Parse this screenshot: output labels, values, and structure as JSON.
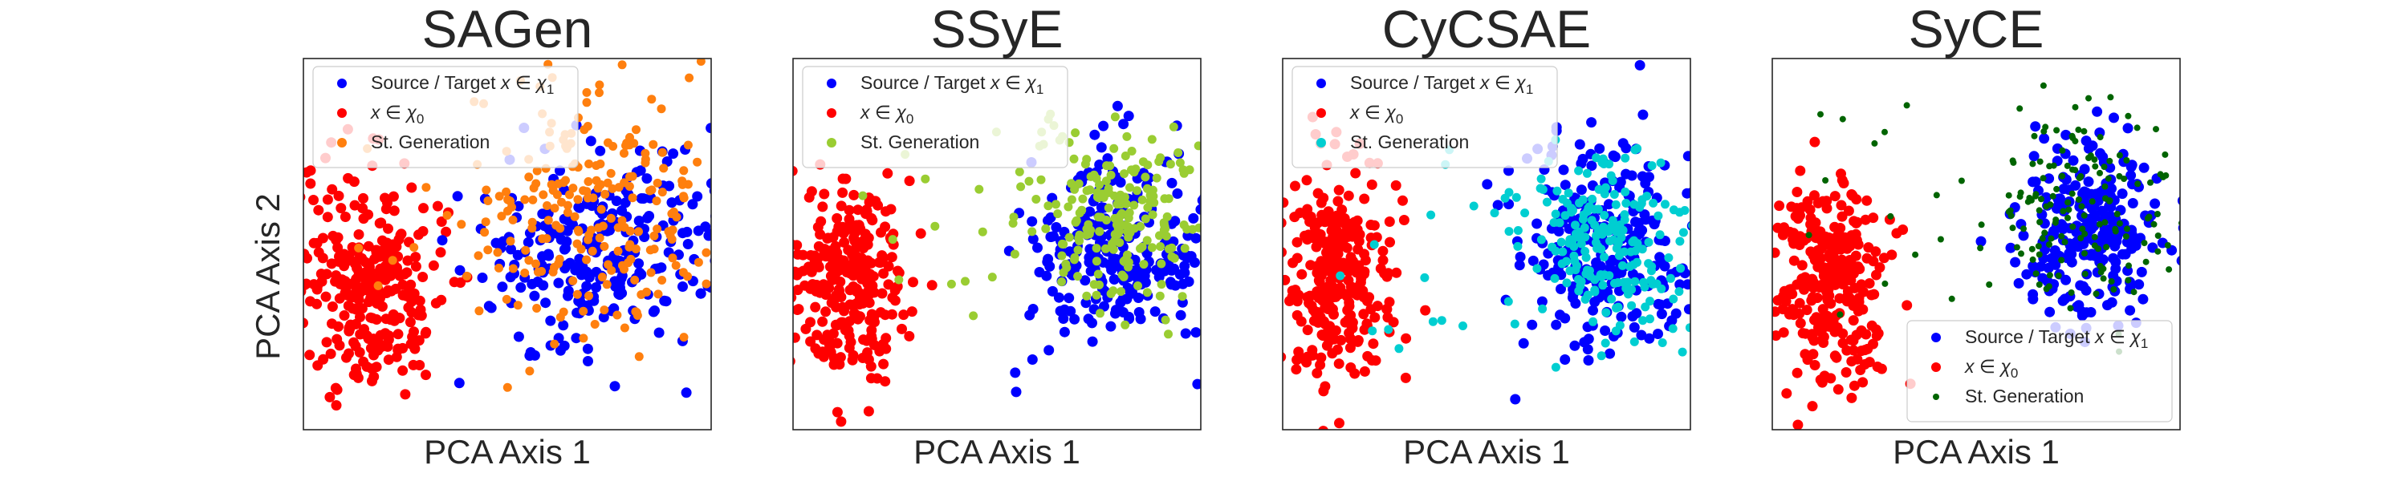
{
  "figure": {
    "ylabel": "PCA Axis 2"
  },
  "chart_data": [
    {
      "type": "scatter",
      "title": "SAGen",
      "xlabel": "PCA Axis 1",
      "ylabel": "PCA Axis 2",
      "grid": false,
      "legend": {
        "position": "top-left",
        "entries": [
          {
            "label": "Source / Target x ∈ χ₁",
            "color": "#0000ff"
          },
          {
            "label": "x ∈ χ₀",
            "color": "#ff0000"
          },
          {
            "label": "St. Generation",
            "color": "#ff7f0e"
          }
        ]
      },
      "series": [
        {
          "name": "Source / Target x ∈ χ₁",
          "color": "#0000ff",
          "centroid": [
            0.74,
            0.52
          ],
          "spread": [
            0.17,
            0.13
          ],
          "count": 260
        },
        {
          "name": "x ∈ χ₀",
          "color": "#ff0000",
          "centroid": [
            0.16,
            0.6
          ],
          "spread": [
            0.085,
            0.14
          ],
          "count": 300
        },
        {
          "name": "St. Generation",
          "color": "#ff7f0e",
          "centroid": [
            0.72,
            0.4
          ],
          "spread": [
            0.15,
            0.16
          ],
          "count": 240
        }
      ]
    },
    {
      "type": "scatter",
      "title": "SSyE",
      "xlabel": "PCA Axis 1",
      "ylabel": "",
      "grid": false,
      "legend": {
        "position": "top-left",
        "entries": [
          {
            "label": "Source / Target x ∈ χ₁",
            "color": "#0000ff"
          },
          {
            "label": "x ∈ χ₀",
            "color": "#ff0000"
          },
          {
            "label": "St. Generation",
            "color": "#9acd32"
          }
        ]
      },
      "series": [
        {
          "name": "Source / Target x ∈ χ₁",
          "color": "#0000ff",
          "centroid": [
            0.8,
            0.5
          ],
          "spread": [
            0.11,
            0.13
          ],
          "count": 260
        },
        {
          "name": "x ∈ χ₀",
          "color": "#ff0000",
          "centroid": [
            0.13,
            0.6
          ],
          "spread": [
            0.07,
            0.13
          ],
          "count": 300
        },
        {
          "name": "St. Generation",
          "color": "#9acd32",
          "centroid": [
            0.79,
            0.42
          ],
          "spread": [
            0.1,
            0.12
          ],
          "count": 220
        }
      ]
    },
    {
      "type": "scatter",
      "title": "CyCSAE",
      "xlabel": "PCA Axis 1",
      "ylabel": "",
      "grid": false,
      "legend": {
        "position": "top-left",
        "entries": [
          {
            "label": "Source / Target x ∈ χ₁",
            "color": "#0000ff"
          },
          {
            "label": "x ∈ χ₀",
            "color": "#ff0000"
          },
          {
            "label": "St. Generation",
            "color": "#00ced1"
          }
        ]
      },
      "series": [
        {
          "name": "Source / Target x ∈ χ₁",
          "color": "#0000ff",
          "centroid": [
            0.8,
            0.5
          ],
          "spread": [
            0.12,
            0.15
          ],
          "count": 260
        },
        {
          "name": "x ∈ χ₀",
          "color": "#ff0000",
          "centroid": [
            0.13,
            0.58
          ],
          "spread": [
            0.07,
            0.14
          ],
          "count": 300
        },
        {
          "name": "St. Generation",
          "color": "#00ced1",
          "centroid": [
            0.8,
            0.5
          ],
          "spread": [
            0.1,
            0.13
          ],
          "count": 220
        }
      ]
    },
    {
      "type": "scatter",
      "title": "SyCE",
      "xlabel": "PCA Axis 1",
      "ylabel": "",
      "grid": false,
      "legend": {
        "position": "bottom-right",
        "entries": [
          {
            "label": "Source / Target x ∈ χ₁",
            "color": "#0000ff"
          },
          {
            "label": "x ∈ χ₀",
            "color": "#ff0000"
          },
          {
            "label": "St. Generation",
            "color": "#006400"
          }
        ]
      },
      "series": [
        {
          "name": "Source / Target x ∈ χ₁",
          "color": "#0000ff",
          "centroid": [
            0.78,
            0.46
          ],
          "spread": [
            0.09,
            0.12
          ],
          "count": 260
        },
        {
          "name": "x ∈ χ₀",
          "color": "#ff0000",
          "centroid": [
            0.14,
            0.6
          ],
          "spread": [
            0.07,
            0.14
          ],
          "count": 300
        },
        {
          "name": "St. Generation",
          "color": "#006400",
          "centroid": [
            0.76,
            0.4
          ],
          "spread": [
            0.12,
            0.14
          ],
          "count": 170
        }
      ]
    }
  ]
}
